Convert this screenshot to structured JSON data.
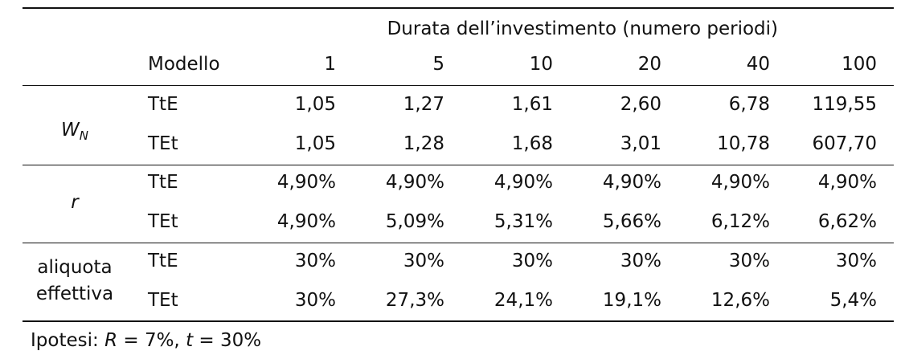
{
  "table": {
    "span_header": "Durata dell’investimento (numero periodi)",
    "model_header": "Modello",
    "durations": [
      "1",
      "5",
      "10",
      "20",
      "40",
      "100"
    ],
    "groups": [
      {
        "label_main": "W",
        "label_sub": "N",
        "rows": [
          {
            "model": "TtE",
            "values": [
              "1,05",
              "1,27",
              "1,61",
              "2,60",
              "6,78",
              "119,55"
            ]
          },
          {
            "model": "TEt",
            "values": [
              "1,05",
              "1,28",
              "1,68",
              "3,01",
              "10,78",
              "607,70"
            ]
          }
        ]
      },
      {
        "label_main": "r",
        "rows": [
          {
            "model": "TtE",
            "values": [
              "4,90%",
              "4,90%",
              "4,90%",
              "4,90%",
              "4,90%",
              "4,90%"
            ]
          },
          {
            "model": "TEt",
            "values": [
              "4,90%",
              "5,09%",
              "5,31%",
              "5,66%",
              "6,12%",
              "6,62%"
            ]
          }
        ]
      },
      {
        "label_line1": "aliquota",
        "label_line2": "effettiva",
        "rows": [
          {
            "model": "TtE",
            "values": [
              "30%",
              "30%",
              "30%",
              "30%",
              "30%",
              "30%"
            ]
          },
          {
            "model": "TEt",
            "values": [
              "30%",
              "27,3%",
              "24,1%",
              "19,1%",
              "12,6%",
              "5,4%"
            ]
          }
        ]
      }
    ]
  },
  "footnote": {
    "prefix": "Ipotesi: ",
    "R_symbol": "R",
    "R_value": " = 7%, ",
    "t_symbol": "t",
    "t_value": " = 30%"
  }
}
